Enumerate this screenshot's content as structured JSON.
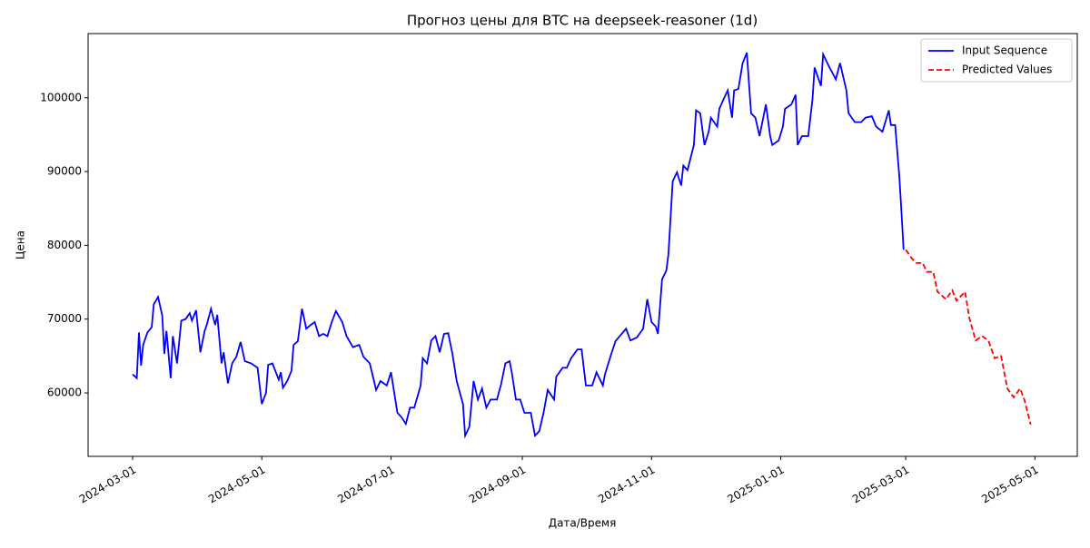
{
  "chart_data": {
    "type": "line",
    "title": "Прогноз цены для BTC на deepseek-reasoner (1d)",
    "x_label": "Дата/Время",
    "y_label": "Цена",
    "xlim": [
      "2024-02-09",
      "2025-05-21"
    ],
    "xticks": [
      "2024-03-01",
      "2024-05-01",
      "2024-07-01",
      "2024-09-01",
      "2024-11-01",
      "2025-01-01",
      "2025-03-01",
      "2025-05-01"
    ],
    "ylim": [
      51400,
      108700
    ],
    "yticks": [
      60000,
      70000,
      80000,
      90000,
      100000
    ],
    "legend": "upper right",
    "series": [
      {
        "name": "Input Sequence",
        "color": "#0000ff",
        "dash": "solid",
        "x": [
          "2024-03-01",
          "2024-03-03",
          "2024-03-04",
          "2024-03-05",
          "2024-03-06",
          "2024-03-08",
          "2024-03-10",
          "2024-03-11",
          "2024-03-13",
          "2024-03-15",
          "2024-03-16",
          "2024-03-17",
          "2024-03-19",
          "2024-03-20",
          "2024-03-22",
          "2024-03-24",
          "2024-03-26",
          "2024-03-28",
          "2024-03-29",
          "2024-03-31",
          "2024-04-02",
          "2024-04-04",
          "2024-04-05",
          "2024-04-07",
          "2024-04-09",
          "2024-04-10",
          "2024-04-12",
          "2024-04-13",
          "2024-04-15",
          "2024-04-17",
          "2024-04-19",
          "2024-04-21",
          "2024-04-23",
          "2024-04-26",
          "2024-04-29",
          "2024-05-01",
          "2024-05-03",
          "2024-05-04",
          "2024-05-06",
          "2024-05-09",
          "2024-05-10",
          "2024-05-11",
          "2024-05-13",
          "2024-05-15",
          "2024-05-16",
          "2024-05-18",
          "2024-05-20",
          "2024-05-22",
          "2024-05-24",
          "2024-05-26",
          "2024-05-28",
          "2024-05-30",
          "2024-06-01",
          "2024-06-03",
          "2024-06-05",
          "2024-06-08",
          "2024-06-10",
          "2024-06-13",
          "2024-06-16",
          "2024-06-18",
          "2024-06-21",
          "2024-06-24",
          "2024-06-26",
          "2024-06-29",
          "2024-07-01",
          "2024-07-04",
          "2024-07-06",
          "2024-07-08",
          "2024-07-10",
          "2024-07-12",
          "2024-07-15",
          "2024-07-16",
          "2024-07-18",
          "2024-07-20",
          "2024-07-22",
          "2024-07-24",
          "2024-07-26",
          "2024-07-28",
          "2024-07-30",
          "2024-08-01",
          "2024-08-04",
          "2024-08-05",
          "2024-08-07",
          "2024-08-09",
          "2024-08-11",
          "2024-08-13",
          "2024-08-15",
          "2024-08-17",
          "2024-08-20",
          "2024-08-22",
          "2024-08-24",
          "2024-08-26",
          "2024-08-27",
          "2024-08-29",
          "2024-08-31",
          "2024-09-02",
          "2024-09-05",
          "2024-09-07",
          "2024-09-09",
          "2024-09-11",
          "2024-09-13",
          "2024-09-16",
          "2024-09-17",
          "2024-09-20",
          "2024-09-22",
          "2024-09-24",
          "2024-09-27",
          "2024-09-29",
          "2024-10-01",
          "2024-10-04",
          "2024-10-06",
          "2024-10-09",
          "2024-10-10",
          "2024-10-13",
          "2024-10-15",
          "2024-10-17",
          "2024-10-20",
          "2024-10-22",
          "2024-10-25",
          "2024-10-28",
          "2024-10-30",
          "2024-11-01",
          "2024-11-03",
          "2024-11-04",
          "2024-11-06",
          "2024-11-08",
          "2024-11-09",
          "2024-11-11",
          "2024-11-13",
          "2024-11-15",
          "2024-11-16",
          "2024-11-18",
          "2024-11-21",
          "2024-11-22",
          "2024-11-24",
          "2024-11-26",
          "2024-11-28",
          "2024-11-29",
          "2024-12-02",
          "2024-12-03",
          "2024-12-05",
          "2024-12-07",
          "2024-12-09",
          "2024-12-10",
          "2024-12-12",
          "2024-12-14",
          "2024-12-16",
          "2024-12-18",
          "2024-12-20",
          "2024-12-22",
          "2024-12-25",
          "2024-12-27",
          "2024-12-28",
          "2024-12-31",
          "2025-01-02",
          "2025-01-03",
          "2025-01-06",
          "2025-01-08",
          "2025-01-09",
          "2025-01-11",
          "2025-01-14",
          "2025-01-16",
          "2025-01-17",
          "2025-01-20",
          "2025-01-21",
          "2025-01-24",
          "2025-01-27",
          "2025-01-29",
          "2025-02-01",
          "2025-02-02",
          "2025-02-05",
          "2025-02-08",
          "2025-02-10",
          "2025-02-13",
          "2025-02-15",
          "2025-02-18",
          "2025-02-21",
          "2025-02-22",
          "2025-02-24",
          "2025-02-26",
          "2025-02-27",
          "2025-02-28"
        ],
        "values": [
          62500,
          62000,
          68200,
          63700,
          66500,
          68200,
          68900,
          72000,
          73000,
          70500,
          65300,
          68400,
          62000,
          67700,
          64000,
          69800,
          70000,
          70800,
          69800,
          71200,
          65500,
          68400,
          69200,
          71400,
          69200,
          70600,
          64000,
          65500,
          61300,
          64000,
          64900,
          66900,
          64300,
          64000,
          63400,
          58500,
          60000,
          63800,
          64000,
          61800,
          62800,
          60700,
          61600,
          63000,
          66500,
          67000,
          71400,
          68700,
          69200,
          69600,
          67700,
          68000,
          67700,
          69600,
          71100,
          69600,
          67700,
          66200,
          66500,
          64900,
          64000,
          60400,
          61600,
          61000,
          62800,
          57300,
          56700,
          55800,
          58000,
          58000,
          61000,
          64700,
          64000,
          67100,
          67700,
          65500,
          68000,
          68100,
          65300,
          61600,
          58500,
          54200,
          55400,
          61600,
          59100,
          60600,
          58000,
          59100,
          59100,
          61200,
          64000,
          64300,
          62800,
          59100,
          59100,
          57300,
          57300,
          54200,
          54800,
          57300,
          60400,
          59100,
          62200,
          63400,
          63400,
          64700,
          65900,
          65900,
          61000,
          61000,
          62800,
          61000,
          62500,
          65300,
          67000,
          67700,
          68700,
          67100,
          67500,
          68700,
          72700,
          69600,
          69000,
          68000,
          75400,
          76600,
          78800,
          88700,
          89900,
          88100,
          90800,
          90200,
          93600,
          98300,
          97900,
          93600,
          95400,
          97300,
          96100,
          98500,
          99800,
          101000,
          97300,
          101000,
          101200,
          104700,
          106100,
          97900,
          97300,
          94800,
          99100,
          94800,
          93600,
          94200,
          96100,
          98500,
          99100,
          100400,
          93600,
          94800,
          94800,
          99800,
          104100,
          101600,
          105900,
          104100,
          102500,
          104700,
          101000,
          97900,
          96700,
          96700,
          97300,
          97500,
          96100,
          95400,
          98300,
          96300,
          96300,
          89300,
          84400,
          79400
        ]
      },
      {
        "name": "Predicted Values",
        "color": "#ff0000",
        "dash": "dashed",
        "x": [
          "2025-03-01",
          "2025-03-04",
          "2025-03-06",
          "2025-03-09",
          "2025-03-11",
          "2025-03-14",
          "2025-03-16",
          "2025-03-20",
          "2025-03-23",
          "2025-03-25",
          "2025-03-29",
          "2025-03-31",
          "2025-04-03",
          "2025-04-06",
          "2025-04-09",
          "2025-04-12",
          "2025-04-15",
          "2025-04-18",
          "2025-04-21",
          "2025-04-24",
          "2025-04-26",
          "2025-04-29"
        ],
        "values": [
          79400,
          78200,
          77600,
          77600,
          76400,
          76400,
          73700,
          72700,
          73900,
          72500,
          73700,
          70200,
          67100,
          67700,
          67100,
          64700,
          65000,
          60600,
          59400,
          60600,
          59100,
          55700
        ]
      }
    ]
  }
}
